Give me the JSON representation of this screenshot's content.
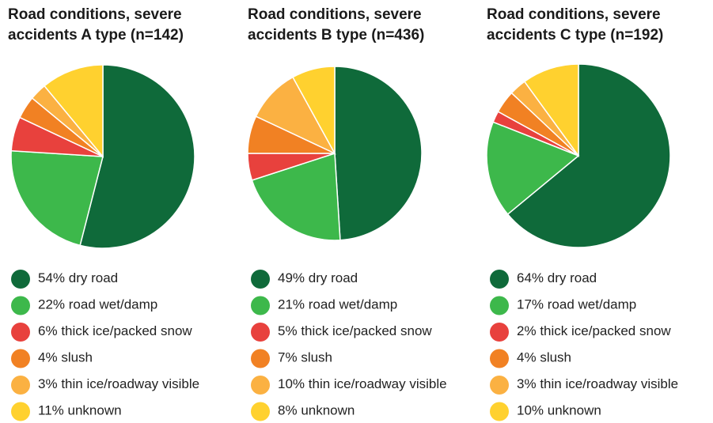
{
  "chart_data": [
    {
      "type": "pie",
      "title": [
        "Road conditions, severe",
        "accidents A type (n=142)"
      ],
      "categories": [
        "dry road",
        "road wet/damp",
        "thick ice/packed snow",
        "slush",
        "thin ice/roadway visible",
        "unknown"
      ],
      "values": [
        54,
        22,
        6,
        4,
        3,
        11
      ],
      "value_labels": [
        "54%",
        "22%",
        "6%",
        "4%",
        "3%",
        "11%"
      ],
      "colors": [
        "#0f6a3a",
        "#3db84b",
        "#e8413d",
        "#f18123",
        "#fbb142",
        "#ffd12f"
      ]
    },
    {
      "type": "pie",
      "title": [
        "Road conditions, severe",
        "accidents B type (n=436)"
      ],
      "categories": [
        "dry road",
        "road wet/damp",
        "thick ice/packed snow",
        "slush",
        "thin ice/roadway visible",
        "unknown"
      ],
      "values": [
        49,
        21,
        5,
        7,
        10,
        8
      ],
      "value_labels": [
        "49%",
        "21%",
        "5%",
        "7%",
        "10%",
        "8%"
      ],
      "colors": [
        "#0f6a3a",
        "#3db84b",
        "#e8413d",
        "#f18123",
        "#fbb142",
        "#ffd12f"
      ]
    },
    {
      "type": "pie",
      "title": [
        "Road conditions, severe",
        "accidents C type (n=192)"
      ],
      "categories": [
        "dry road",
        "road wet/damp",
        "thick ice/packed snow",
        "slush",
        "thin ice/roadway visible",
        "unknown"
      ],
      "values": [
        64,
        17,
        2,
        4,
        3,
        10
      ],
      "value_labels": [
        "64%",
        "17%",
        "2%",
        "4%",
        "3%",
        "10%"
      ],
      "colors": [
        "#0f6a3a",
        "#3db84b",
        "#e8413d",
        "#f18123",
        "#fbb142",
        "#ffd12f"
      ]
    }
  ]
}
